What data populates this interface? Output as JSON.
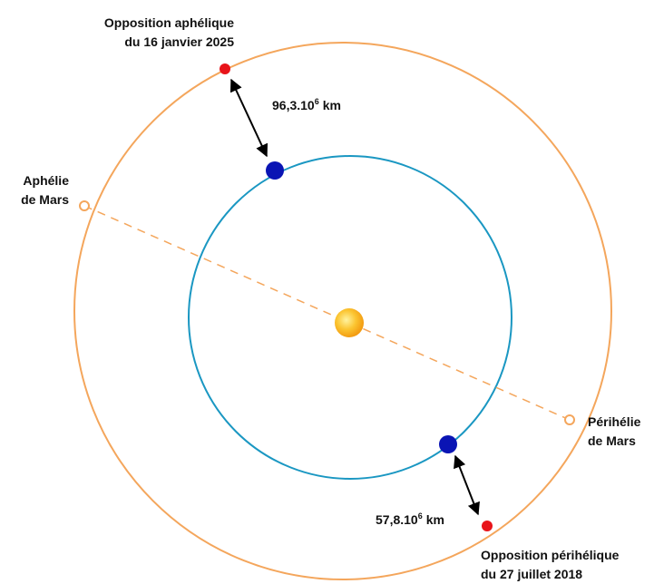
{
  "labels": {
    "opposition_aphelique": [
      "Opposition aphélique",
      "du 16 janvier 2025"
    ],
    "aphelie": [
      "Aphélie",
      "de Mars"
    ],
    "perihelie": [
      "Périhélie",
      "de Mars"
    ],
    "opposition_perihelique": [
      "Opposition périhélique",
      "du 27 juillet 2018"
    ],
    "distance_aphelique": {
      "mantissa": "96,3.10",
      "exponent": "6",
      "unit": "km"
    },
    "distance_perihelique": {
      "mantissa": "57,8.10",
      "exponent": "6",
      "unit": "km"
    }
  }
}
